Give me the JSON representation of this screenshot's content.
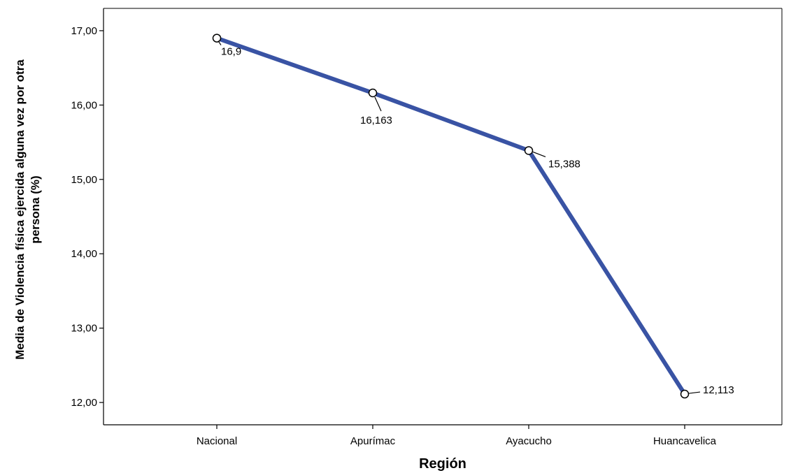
{
  "chart_data": {
    "type": "line",
    "categories": [
      "Nacional",
      "Apurímac",
      "Ayacucho",
      "Huancavelica"
    ],
    "values": [
      16.9,
      16.163,
      15.388,
      12.113
    ],
    "data_labels": [
      "16,9",
      "16,163",
      "15,388",
      "12,113"
    ],
    "xlabel": "Región",
    "ylabel_lines": [
      "Media de Violencia física ejercida alguna vez por otra",
      "persona (%)"
    ],
    "y_ticks": [
      12,
      13,
      14,
      15,
      16,
      17
    ],
    "y_tick_labels": [
      "12,00",
      "13,00",
      "14,00",
      "15,00",
      "16,00",
      "17,00"
    ],
    "ylim": [
      11.7,
      17.3
    ],
    "grid": false,
    "line_color": "#3953a4"
  }
}
